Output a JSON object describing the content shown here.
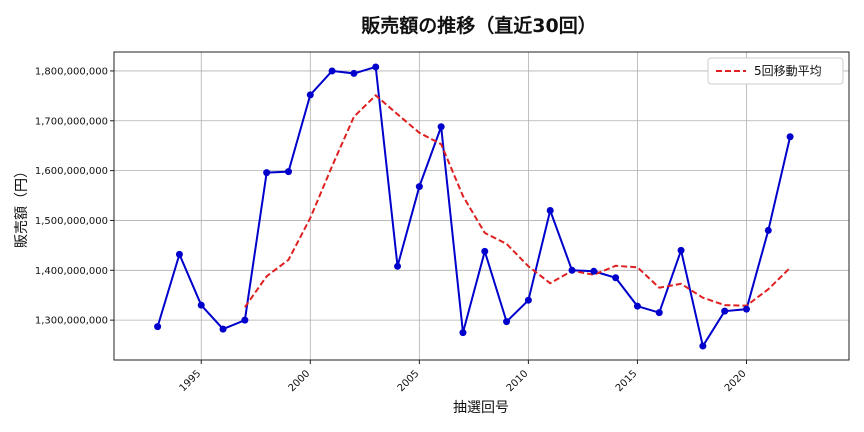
{
  "chart_data": {
    "type": "line",
    "title": "販売額の推移（直近30回）",
    "xlabel": "抽選回号",
    "ylabel": "販売額（円）",
    "xlim": [
      1991.0,
      2024.7
    ],
    "ylim": [
      1220000000,
      1838000000
    ],
    "xticks": [
      1995,
      2000,
      2005,
      2010,
      2015,
      2020
    ],
    "yticks": [
      1300000000,
      1400000000,
      1500000000,
      1600000000,
      1700000000,
      1800000000
    ],
    "ytick_labels": [
      "1,300,000,000",
      "1,400,000,000",
      "1,500,000,000",
      "1,600,000,000",
      "1,700,000,000",
      "1,800,000,000"
    ],
    "grid": true,
    "legend_position": "top-right",
    "series": [
      {
        "name": "",
        "style": "solid-markers",
        "color": "#0000cc",
        "points": [
          [
            1993,
            1287000000
          ],
          [
            1994,
            1432000000
          ],
          [
            1995,
            1330000000
          ],
          [
            1996,
            1282000000
          ],
          [
            1997,
            1300000000
          ],
          [
            1998,
            1596000000
          ],
          [
            1999,
            1598000000
          ],
          [
            2000,
            1752000000
          ],
          [
            2001,
            1800000000
          ],
          [
            2002,
            1795000000
          ],
          [
            2003,
            1808000000
          ],
          [
            2004,
            1408000000
          ],
          [
            2005,
            1568000000
          ],
          [
            2006,
            1688000000
          ],
          [
            2007,
            1275000000
          ],
          [
            2008,
            1438000000
          ],
          [
            2009,
            1297000000
          ],
          [
            2010,
            1340000000
          ],
          [
            2011,
            1520000000
          ],
          [
            2012,
            1400000000
          ],
          [
            2013,
            1398000000
          ],
          [
            2014,
            1385000000
          ],
          [
            2015,
            1328000000
          ],
          [
            2016,
            1315000000
          ],
          [
            2017,
            1440000000
          ],
          [
            2018,
            1248000000
          ],
          [
            2019,
            1318000000
          ],
          [
            2020,
            1322000000
          ],
          [
            2021,
            1480000000
          ],
          [
            2022,
            1668000000
          ]
        ]
      },
      {
        "name": "5回移動平均",
        "style": "dashed",
        "color": "#e02020",
        "points": [
          [
            1997,
            1326000000
          ],
          [
            1998,
            1388000000
          ],
          [
            1999,
            1421000000
          ],
          [
            2000,
            1505000000
          ],
          [
            2001,
            1609000000
          ],
          [
            2002,
            1708000000
          ],
          [
            2003,
            1751000000
          ],
          [
            2004,
            1713000000
          ],
          [
            2005,
            1676000000
          ],
          [
            2006,
            1653000000
          ],
          [
            2007,
            1549000000
          ],
          [
            2008,
            1475000000
          ],
          [
            2009,
            1453000000
          ],
          [
            2010,
            1408000000
          ],
          [
            2011,
            1374000000
          ],
          [
            2012,
            1399000000
          ],
          [
            2013,
            1391000000
          ],
          [
            2014,
            1409000000
          ],
          [
            2015,
            1406000000
          ],
          [
            2016,
            1365000000
          ],
          [
            2017,
            1373000000
          ],
          [
            2018,
            1345000000
          ],
          [
            2019,
            1330000000
          ],
          [
            2020,
            1329000000
          ],
          [
            2021,
            1362000000
          ],
          [
            2022,
            1405000000
          ]
        ]
      }
    ]
  }
}
